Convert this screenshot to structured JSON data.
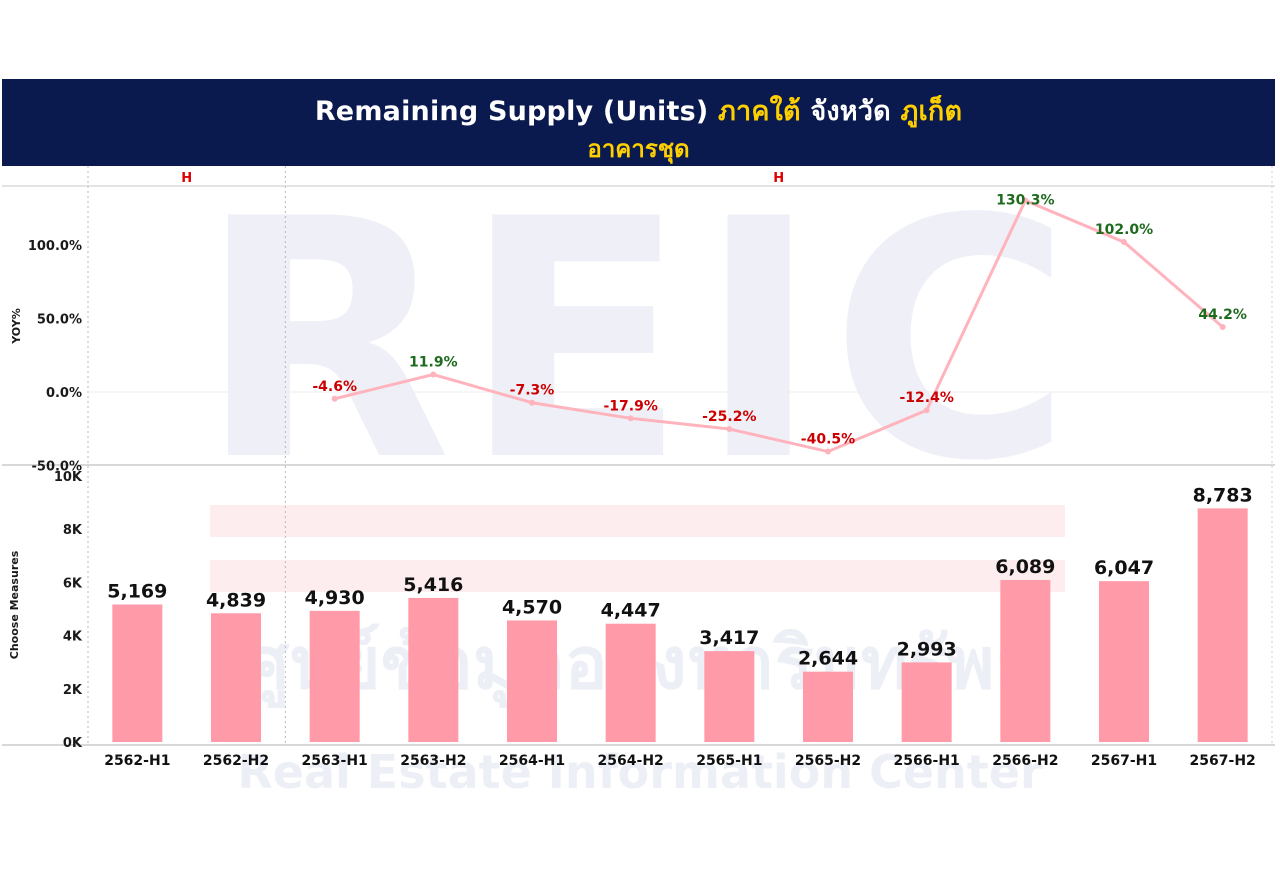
{
  "header": {
    "title_main": "Remaining Supply (Units)",
    "title_region": "ภาคใต้",
    "title_province_label": "จังหวัด",
    "title_province": "ภูเก็ต",
    "subtitle": "อาคารชุด"
  },
  "watermark": {
    "logo_text": "REIC",
    "line_thai": "ศูนย์ข้อมูลอสังหาริมทรัพย์",
    "line_en": "Real Estate Information Center"
  },
  "colors": {
    "header_bg": "#0b1a4e",
    "bar": "#ff9aa8",
    "line": "#ffb3bd",
    "negative_label": "#cc0000",
    "positive_label": "#1e6b1e",
    "group_label": "#e00000"
  },
  "chart_data": {
    "type": "bar+line",
    "categories": [
      "2562-H1",
      "2562-H2",
      "2563-H1",
      "2563-H2",
      "2564-H1",
      "2564-H2",
      "2565-H1",
      "2565-H2",
      "2566-H1",
      "2566-H2",
      "2567-H1",
      "2567-H2"
    ],
    "groups": [
      {
        "label": "H",
        "start": 0,
        "end": 1
      },
      {
        "label": "H",
        "start": 2,
        "end": 11
      }
    ],
    "top_panel": {
      "type": "line",
      "ylabel": "YOY%",
      "ylim": [
        -50,
        130
      ],
      "yticks": [
        -50,
        0,
        50,
        100
      ],
      "ytick_labels": [
        "-50.0%",
        "0.0%",
        "50.0%",
        "100.0%"
      ],
      "values": [
        null,
        null,
        -4.6,
        11.9,
        -7.3,
        -17.9,
        -25.2,
        -40.5,
        -12.4,
        130.3,
        102.0,
        44.2
      ],
      "labels": [
        "",
        "",
        "-4.6%",
        "11.9%",
        "-7.3%",
        "-17.9%",
        "-25.2%",
        "-40.5%",
        "-12.4%",
        "130.3%",
        "102.0%",
        "44.2%"
      ]
    },
    "bottom_panel": {
      "type": "bar",
      "ylabel": "Choose Measures",
      "ylim": [
        0,
        10000
      ],
      "yticks": [
        0,
        2000,
        4000,
        6000,
        8000,
        10000
      ],
      "ytick_labels": [
        "0K",
        "2K",
        "4K",
        "6K",
        "8K",
        "10K"
      ],
      "values": [
        5169,
        4839,
        4930,
        5416,
        4570,
        4447,
        3417,
        2644,
        2993,
        6089,
        6047,
        8783
      ],
      "labels": [
        "5,169",
        "4,839",
        "4,930",
        "5,416",
        "4,570",
        "4,447",
        "3,417",
        "2,644",
        "2,993",
        "6,089",
        "6,047",
        "8,783"
      ]
    }
  }
}
